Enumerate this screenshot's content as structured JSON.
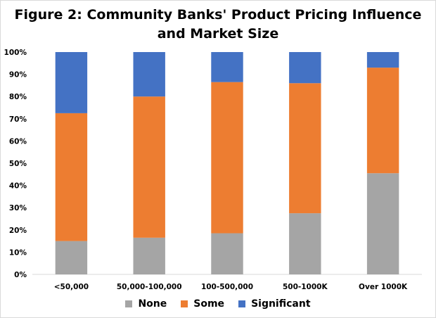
{
  "chart_data": {
    "type": "bar",
    "stacked": true,
    "title_line1": "Figure 2: Community Banks' Product Pricing Influence",
    "title_line2": "and Market Size",
    "categories": [
      "<50,000",
      "50,000-100,000",
      "100-500,000",
      "500-1000K",
      "Over 1000K"
    ],
    "series": [
      {
        "name": "None",
        "color": "#a5a5a5",
        "values": [
          15,
          16.5,
          18.5,
          27.5,
          45.5
        ]
      },
      {
        "name": "Some",
        "color": "#ed7d31",
        "values": [
          57.5,
          63.5,
          68,
          58.5,
          47.5
        ]
      },
      {
        "name": "Significant",
        "color": "#4472c4",
        "values": [
          27.5,
          20,
          13.5,
          14,
          7
        ]
      }
    ],
    "yticks": [
      "0%",
      "10%",
      "20%",
      "30%",
      "40%",
      "50%",
      "60%",
      "70%",
      "80%",
      "90%",
      "100%"
    ],
    "ylim": [
      0,
      100
    ],
    "legend_position": "bottom",
    "grid": false
  }
}
